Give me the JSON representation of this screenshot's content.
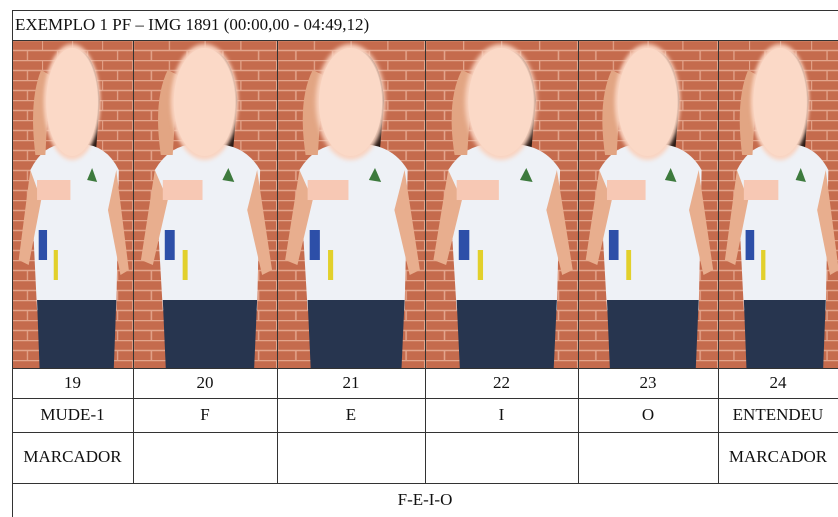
{
  "header": {
    "title": "EXEMPLO 1 PF – IMG 1891 (00:00,00 - 04:49,12)"
  },
  "frames": [
    {
      "number": 19,
      "gloss": "MUDE-1",
      "marker": "MARCADOR"
    },
    {
      "number": 20,
      "gloss": "F"
    },
    {
      "number": 21,
      "gloss": "E"
    },
    {
      "number": 22,
      "gloss": "I"
    },
    {
      "number": 23,
      "gloss": "O"
    },
    {
      "number": 24,
      "gloss": "ENTENDEU",
      "marker": "MARCADOR"
    }
  ],
  "footer": "F-E-I-O"
}
